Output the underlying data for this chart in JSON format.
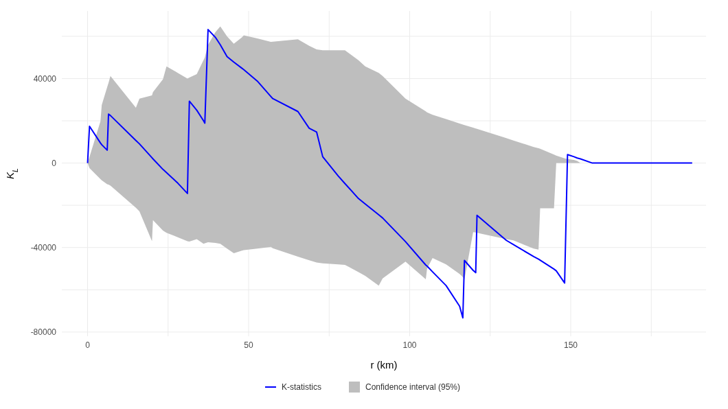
{
  "chart_data": {
    "type": "line",
    "xlabel": "r (km)",
    "ylabel": "K$_{L}$",
    "annotations": [
      "Confidence interval (95%)"
    ],
    "xlim": [
      -8,
      192
    ],
    "ylim": [
      -82000,
      72000
    ],
    "xticks": [
      0,
      {
        "value": 25,
        "label": null
      },
      50,
      {
        "value": 75,
        "label": null
      },
      100,
      {
        "value": 125,
        "label": null
      },
      150,
      {
        "value": 175,
        "label": null
      }
    ],
    "yticks": [
      -80000,
      {
        "value": -60000,
        "label": null
      },
      -40000,
      {
        "value": -20000,
        "label": null
      },
      0,
      {
        "value": 20000,
        "label": null
      },
      40000,
      {
        "value": 60000,
        "label": null
      }
    ],
    "grid": true,
    "legend": "bottom",
    "marker": "none",
    "line_style": "solid",
    "series": [
      {
        "name": "K-statistics",
        "color": "#0000ff",
        "x": [
          0,
          0.6,
          4,
          4.4,
          6.1,
          6.5,
          7.1,
          15,
          16.1,
          20,
          20.3,
          23.4,
          24.5,
          28,
          31,
          31.6,
          33.9,
          36,
          36.4,
          37.4,
          39.7,
          41.2,
          43.3,
          45.4,
          47.9,
          48.5,
          52.7,
          56.9,
          57.5,
          65.3,
          68.8,
          71.1,
          73,
          77.8,
          79.9,
          84.1,
          86.2,
          90.4,
          91.6,
          98.7,
          105,
          105.4,
          107.1,
          111.3,
          115.5,
          116.5,
          117,
          119.7,
          120.5,
          120.9,
          130,
          132.2,
          138.5,
          140,
          140.5,
          144.8,
          145.5,
          148.1,
          149,
          151,
          152,
          153,
          156.7,
          187.7
        ],
        "values": [
          0,
          17400,
          9500,
          8700,
          6100,
          23200,
          22500,
          10700,
          9100,
          2500,
          2000,
          -3000,
          -4500,
          -9500,
          -14400,
          29300,
          25000,
          20000,
          18900,
          63200,
          59500,
          56000,
          50400,
          47800,
          44900,
          44200,
          38800,
          31500,
          30500,
          24400,
          16500,
          14700,
          3000,
          -6100,
          -9700,
          -16800,
          -19400,
          -24500,
          -26000,
          -37200,
          -48300,
          -48800,
          -51500,
          -58000,
          -67800,
          -73300,
          -46100,
          -50800,
          -51900,
          -24700,
          -36600,
          -38600,
          -44300,
          -45500,
          -46000,
          -50200,
          -51000,
          -56800,
          4000,
          3000,
          2400,
          2000,
          0,
          0
        ],
        "lower": [
          0,
          -2400,
          -7600,
          -8200,
          -10000,
          -10200,
          -10700,
          -21200,
          -22900,
          -37000,
          -27000,
          -32000,
          -33000,
          -35100,
          -37000,
          -37200,
          -36000,
          -38200,
          -38000,
          -37500,
          -37800,
          -38200,
          -40500,
          -42700,
          -41500,
          -41200,
          -40500,
          -39700,
          -40300,
          -44300,
          -46000,
          -47100,
          -47500,
          -48000,
          -48200,
          -51600,
          -53400,
          -58000,
          -54600,
          -46700,
          -55000,
          -50000,
          -45000,
          -48000,
          -52500,
          -54000,
          -55000,
          -32700,
          -32900,
          -33000,
          -36000,
          -36600,
          -40500,
          -41000,
          -21400,
          -21400,
          0,
          0,
          0,
          0,
          0,
          0,
          0,
          0
        ],
        "upper": [
          0,
          3000,
          19800,
          27500,
          36000,
          38000,
          41200,
          26200,
          30500,
          32000,
          33600,
          39700,
          45800,
          42700,
          40000,
          40500,
          42100,
          48800,
          50000,
          56000,
          62000,
          64700,
          60000,
          56500,
          59500,
          60500,
          59000,
          57400,
          57500,
          58600,
          55500,
          53800,
          53400,
          53400,
          53400,
          48700,
          45800,
          42700,
          41200,
          30500,
          24500,
          24000,
          22900,
          20800,
          18700,
          18200,
          18000,
          16800,
          16400,
          16200,
          11800,
          10700,
          7600,
          7000,
          6800,
          4000,
          3500,
          2200,
          1900,
          1500,
          1000,
          0,
          0,
          0
        ]
      }
    ]
  }
}
